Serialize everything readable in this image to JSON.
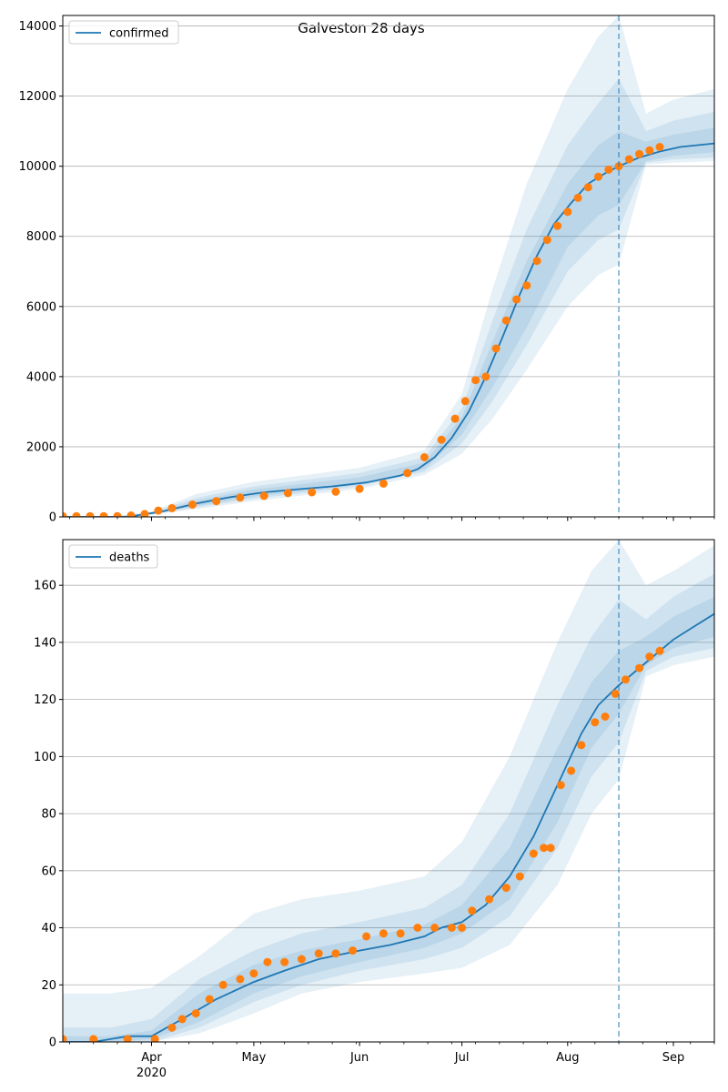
{
  "title": "Galveston 28 days",
  "colors": {
    "band": "#1f77b4",
    "fit": "#1f77b4",
    "observed": "#ff7f0e",
    "grid": "#b0b0b0",
    "axis": "#000000"
  },
  "chart_data": [
    {
      "type": "line",
      "legend": [
        "confirmed"
      ],
      "legend_loc": "upper-left",
      "grid": "y",
      "xlim": [
        "2020-03-06",
        "2020-09-13"
      ],
      "ylim": [
        0,
        14300
      ],
      "yticks": [
        0,
        2000,
        4000,
        6000,
        8000,
        10000,
        12000,
        14000
      ],
      "forecast_start": "2020-08-16",
      "fit": {
        "x": [
          "2020-03-06",
          "2020-03-15",
          "2020-03-25",
          "2020-04-04",
          "2020-04-14",
          "2020-04-24",
          "2020-05-04",
          "2020-05-14",
          "2020-05-24",
          "2020-06-03",
          "2020-06-13",
          "2020-06-18",
          "2020-06-23",
          "2020-06-28",
          "2020-07-03",
          "2020-07-08",
          "2020-07-13",
          "2020-07-18",
          "2020-07-23",
          "2020-07-28",
          "2020-08-02",
          "2020-08-07",
          "2020-08-12",
          "2020-08-16",
          "2020-08-22",
          "2020-08-28",
          "2020-09-03",
          "2020-09-13"
        ],
        "y": [
          0,
          0,
          0,
          150,
          380,
          560,
          700,
          790,
          870,
          980,
          1180,
          1360,
          1700,
          2250,
          3000,
          4000,
          5150,
          6350,
          7450,
          8350,
          8950,
          9500,
          9800,
          10000,
          10250,
          10420,
          10550,
          10650
        ]
      },
      "bands": [
        {
          "x": [
            "2020-03-06",
            "2020-03-20",
            "2020-04-01",
            "2020-04-14",
            "2020-05-01",
            "2020-06-01",
            "2020-06-20",
            "2020-07-01",
            "2020-07-10",
            "2020-07-20",
            "2020-08-01",
            "2020-08-10",
            "2020-08-16",
            "2020-08-24",
            "2020-09-01",
            "2020-09-13"
          ],
          "lo": [
            0,
            0,
            60,
            220,
            450,
            800,
            1200,
            1800,
            2800,
            4200,
            6000,
            6900,
            7200,
            10050,
            10100,
            10150
          ],
          "hi": [
            0,
            0,
            150,
            650,
            1000,
            1400,
            1900,
            3500,
            6500,
            9500,
            12200,
            13700,
            14300,
            11500,
            11900,
            12200
          ]
        },
        {
          "x": [
            "2020-03-06",
            "2020-03-20",
            "2020-04-01",
            "2020-04-14",
            "2020-05-01",
            "2020-06-01",
            "2020-06-20",
            "2020-07-01",
            "2020-07-10",
            "2020-07-20",
            "2020-08-01",
            "2020-08-10",
            "2020-08-16",
            "2020-08-24",
            "2020-09-01",
            "2020-09-13"
          ],
          "lo": [
            0,
            0,
            70,
            270,
            520,
            870,
            1290,
            2100,
            3300,
            4900,
            7000,
            7900,
            8200,
            10100,
            10200,
            10250
          ],
          "hi": [
            0,
            0,
            130,
            540,
            870,
            1250,
            1700,
            3100,
            5600,
            8200,
            10600,
            11800,
            12500,
            11000,
            11300,
            11550
          ]
        },
        {
          "x": [
            "2020-03-06",
            "2020-03-20",
            "2020-04-01",
            "2020-04-14",
            "2020-05-01",
            "2020-06-01",
            "2020-06-20",
            "2020-07-01",
            "2020-07-10",
            "2020-07-20",
            "2020-08-01",
            "2020-08-10",
            "2020-08-16",
            "2020-08-24",
            "2020-09-01",
            "2020-09-13"
          ],
          "lo": [
            0,
            0,
            80,
            310,
            580,
            920,
            1370,
            2350,
            3700,
            5400,
            7700,
            8600,
            8900,
            10150,
            10300,
            10400
          ],
          "hi": [
            0,
            0,
            110,
            460,
            780,
            1130,
            1550,
            2850,
            5000,
            7300,
            9500,
            10600,
            11000,
            10700,
            10900,
            11100
          ]
        }
      ],
      "observed": {
        "x": [
          "2020-03-06",
          "2020-03-10",
          "2020-03-14",
          "2020-03-18",
          "2020-03-22",
          "2020-03-26",
          "2020-03-30",
          "2020-04-03",
          "2020-04-07",
          "2020-04-13",
          "2020-04-20",
          "2020-04-27",
          "2020-05-04",
          "2020-05-11",
          "2020-05-18",
          "2020-05-25",
          "2020-06-01",
          "2020-06-08",
          "2020-06-15",
          "2020-06-20",
          "2020-06-25",
          "2020-06-29",
          "2020-07-02",
          "2020-07-05",
          "2020-07-08",
          "2020-07-11",
          "2020-07-14",
          "2020-07-17",
          "2020-07-20",
          "2020-07-23",
          "2020-07-26",
          "2020-07-29",
          "2020-08-01",
          "2020-08-04",
          "2020-08-07",
          "2020-08-10",
          "2020-08-13",
          "2020-08-16",
          "2020-08-19",
          "2020-08-22",
          "2020-08-25",
          "2020-08-28"
        ],
        "y": [
          20,
          20,
          20,
          20,
          20,
          40,
          80,
          180,
          250,
          350,
          450,
          550,
          600,
          680,
          700,
          720,
          800,
          950,
          1250,
          1700,
          2200,
          2800,
          3300,
          3900,
          4000,
          4800,
          5600,
          6200,
          6600,
          7300,
          7900,
          8300,
          8700,
          9100,
          9400,
          9700,
          9900,
          10000,
          10200,
          10350,
          10450,
          10550
        ]
      }
    },
    {
      "type": "line",
      "legend": [
        "deaths"
      ],
      "legend_loc": "upper-left",
      "grid": "y",
      "xlim": [
        "2020-03-06",
        "2020-09-13"
      ],
      "ylim": [
        0,
        176
      ],
      "yticks": [
        0,
        20,
        40,
        60,
        80,
        100,
        120,
        140,
        160
      ],
      "xticks": [
        {
          "date": "2020-04-01",
          "label": "Apr",
          "sublabel": "2020"
        },
        {
          "date": "2020-05-01",
          "label": "May"
        },
        {
          "date": "2020-06-01",
          "label": "Jun"
        },
        {
          "date": "2020-07-01",
          "label": "Jul"
        },
        {
          "date": "2020-08-01",
          "label": "Aug"
        },
        {
          "date": "2020-09-01",
          "label": "Sep"
        }
      ],
      "forecast_start": "2020-08-16",
      "fit": {
        "x": [
          "2020-03-06",
          "2020-03-15",
          "2020-03-25",
          "2020-04-01",
          "2020-04-10",
          "2020-04-20",
          "2020-05-01",
          "2020-05-10",
          "2020-05-20",
          "2020-06-01",
          "2020-06-10",
          "2020-06-20",
          "2020-06-25",
          "2020-07-01",
          "2020-07-08",
          "2020-07-15",
          "2020-07-22",
          "2020-07-29",
          "2020-08-05",
          "2020-08-10",
          "2020-08-16",
          "2020-08-23",
          "2020-09-01",
          "2020-09-13"
        ],
        "y": [
          0,
          0,
          2,
          2,
          8,
          15,
          21,
          25,
          29,
          32,
          34,
          37,
          40,
          42,
          48,
          58,
          72,
          90,
          108,
          118,
          125,
          132,
          141,
          150
        ]
      },
      "bands": [
        {
          "x": [
            "2020-03-06",
            "2020-03-20",
            "2020-04-01",
            "2020-04-15",
            "2020-05-01",
            "2020-05-15",
            "2020-06-01",
            "2020-06-20",
            "2020-07-01",
            "2020-07-15",
            "2020-07-29",
            "2020-08-08",
            "2020-08-16",
            "2020-08-24",
            "2020-09-01",
            "2020-09-13"
          ],
          "lo": [
            0,
            0,
            0,
            3,
            10,
            17,
            21,
            24,
            26,
            34,
            55,
            80,
            92,
            128,
            132,
            135
          ],
          "hi": [
            17,
            17,
            19,
            30,
            45,
            50,
            53,
            58,
            70,
            100,
            140,
            165,
            176,
            160,
            165,
            174
          ]
        },
        {
          "x": [
            "2020-03-06",
            "2020-03-20",
            "2020-04-01",
            "2020-04-15",
            "2020-05-01",
            "2020-05-15",
            "2020-06-01",
            "2020-06-20",
            "2020-07-01",
            "2020-07-15",
            "2020-07-29",
            "2020-08-08",
            "2020-08-16",
            "2020-08-24",
            "2020-09-01",
            "2020-09-13"
          ],
          "lo": [
            0,
            0,
            0,
            5,
            14,
            20,
            25,
            29,
            33,
            44,
            68,
            93,
            105,
            130,
            135,
            138
          ],
          "hi": [
            5,
            5,
            8,
            22,
            32,
            38,
            42,
            47,
            55,
            80,
            118,
            142,
            155,
            148,
            156,
            164
          ]
        },
        {
          "x": [
            "2020-03-06",
            "2020-03-20",
            "2020-04-01",
            "2020-04-15",
            "2020-05-01",
            "2020-05-15",
            "2020-06-01",
            "2020-06-20",
            "2020-07-01",
            "2020-07-15",
            "2020-07-29",
            "2020-08-08",
            "2020-08-16",
            "2020-08-24",
            "2020-09-01",
            "2020-09-13"
          ],
          "lo": [
            0,
            0,
            1,
            7,
            17,
            23,
            28,
            33,
            38,
            50,
            77,
            103,
            115,
            132,
            138,
            142
          ],
          "hi": [
            2,
            2,
            4,
            17,
            27,
            32,
            36,
            41,
            48,
            68,
            103,
            126,
            137,
            142,
            149,
            156
          ]
        }
      ],
      "observed": {
        "x": [
          "2020-03-06",
          "2020-03-15",
          "2020-03-25",
          "2020-04-02",
          "2020-04-07",
          "2020-04-10",
          "2020-04-14",
          "2020-04-18",
          "2020-04-22",
          "2020-04-27",
          "2020-05-01",
          "2020-05-05",
          "2020-05-10",
          "2020-05-15",
          "2020-05-20",
          "2020-05-25",
          "2020-05-30",
          "2020-06-03",
          "2020-06-08",
          "2020-06-13",
          "2020-06-18",
          "2020-06-23",
          "2020-06-28",
          "2020-07-01",
          "2020-07-04",
          "2020-07-09",
          "2020-07-14",
          "2020-07-18",
          "2020-07-22",
          "2020-07-25",
          "2020-07-27",
          "2020-07-30",
          "2020-08-02",
          "2020-08-05",
          "2020-08-09",
          "2020-08-12",
          "2020-08-15",
          "2020-08-18",
          "2020-08-22",
          "2020-08-25",
          "2020-08-28"
        ],
        "y": [
          1,
          1,
          1,
          1,
          5,
          8,
          10,
          15,
          20,
          22,
          24,
          28,
          28,
          29,
          31,
          31,
          32,
          37,
          38,
          38,
          40,
          40,
          40,
          40,
          46,
          50,
          54,
          58,
          66,
          68,
          68,
          90,
          95,
          104,
          112,
          114,
          122,
          127,
          131,
          135,
          137
        ]
      }
    }
  ]
}
